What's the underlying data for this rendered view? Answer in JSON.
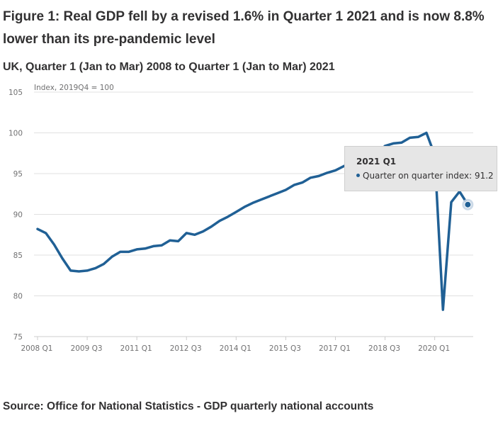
{
  "figure": {
    "title": "Figure 1: Real GDP fell by a revised 1.6% in Quarter 1 2021 and is now 8.8% lower than its pre-pandemic level",
    "subtitle": "UK, Quarter 1 (Jan to Mar) 2008 to Quarter 1 (Jan to Mar) 2021",
    "source": "Source: Office for National Statistics - GDP quarterly national accounts"
  },
  "colors": {
    "line": "#206095",
    "grid": "#e0e0e0",
    "tooltip_bg": "#e6e6e6"
  },
  "tooltip": {
    "title": "2021 Q1",
    "series_label": "Quarter on quarter index",
    "value_text": "Quarter on quarter index: 91.2"
  },
  "chart_data": {
    "type": "line",
    "title": "Figure 1: Real GDP fell by a revised 1.6% in Quarter 1 2021 and is now 8.8% lower than its pre-pandemic level",
    "subtitle": "UK, Quarter 1 (Jan to Mar) 2008 to Quarter 1 (Jan to Mar) 2021",
    "xlabel": "",
    "ylabel": "Index, 2019Q4 = 100",
    "ylim": [
      75,
      105
    ],
    "yticks": [
      75,
      80,
      85,
      90,
      95,
      100,
      105
    ],
    "xtick_labels": [
      "2008 Q1",
      "2009 Q3",
      "2011 Q1",
      "2012 Q3",
      "2014 Q1",
      "2015 Q3",
      "2017 Q1",
      "2018 Q3",
      "2020 Q1"
    ],
    "grid": true,
    "legend": "none",
    "x": [
      "2008 Q1",
      "2008 Q2",
      "2008 Q3",
      "2008 Q4",
      "2009 Q1",
      "2009 Q2",
      "2009 Q3",
      "2009 Q4",
      "2010 Q1",
      "2010 Q2",
      "2010 Q3",
      "2010 Q4",
      "2011 Q1",
      "2011 Q2",
      "2011 Q3",
      "2011 Q4",
      "2012 Q1",
      "2012 Q2",
      "2012 Q3",
      "2012 Q4",
      "2013 Q1",
      "2013 Q2",
      "2013 Q3",
      "2013 Q4",
      "2014 Q1",
      "2014 Q2",
      "2014 Q3",
      "2014 Q4",
      "2015 Q1",
      "2015 Q2",
      "2015 Q3",
      "2015 Q4",
      "2016 Q1",
      "2016 Q2",
      "2016 Q3",
      "2016 Q4",
      "2017 Q1",
      "2017 Q2",
      "2017 Q3",
      "2017 Q4",
      "2018 Q1",
      "2018 Q2",
      "2018 Q3",
      "2018 Q4",
      "2019 Q1",
      "2019 Q2",
      "2019 Q3",
      "2019 Q4",
      "2020 Q1",
      "2020 Q2",
      "2020 Q3",
      "2020 Q4",
      "2021 Q1"
    ],
    "series": [
      {
        "name": "Quarter on quarter index",
        "values": [
          88.2,
          87.7,
          86.3,
          84.6,
          83.1,
          83.0,
          83.1,
          83.4,
          83.9,
          84.8,
          85.4,
          85.4,
          85.7,
          85.8,
          86.1,
          86.2,
          86.8,
          86.7,
          87.7,
          87.5,
          87.9,
          88.5,
          89.2,
          89.7,
          90.3,
          90.9,
          91.4,
          91.8,
          92.2,
          92.6,
          93.0,
          93.6,
          93.9,
          94.5,
          94.7,
          95.1,
          95.4,
          95.9,
          96.4,
          96.7,
          96.9,
          97.4,
          98.4,
          98.7,
          98.8,
          99.4,
          99.5,
          100.0,
          97.3,
          78.3,
          91.5,
          92.8,
          91.2
        ]
      }
    ],
    "highlighted_point": {
      "x": "2021 Q1",
      "value": 91.2
    }
  }
}
